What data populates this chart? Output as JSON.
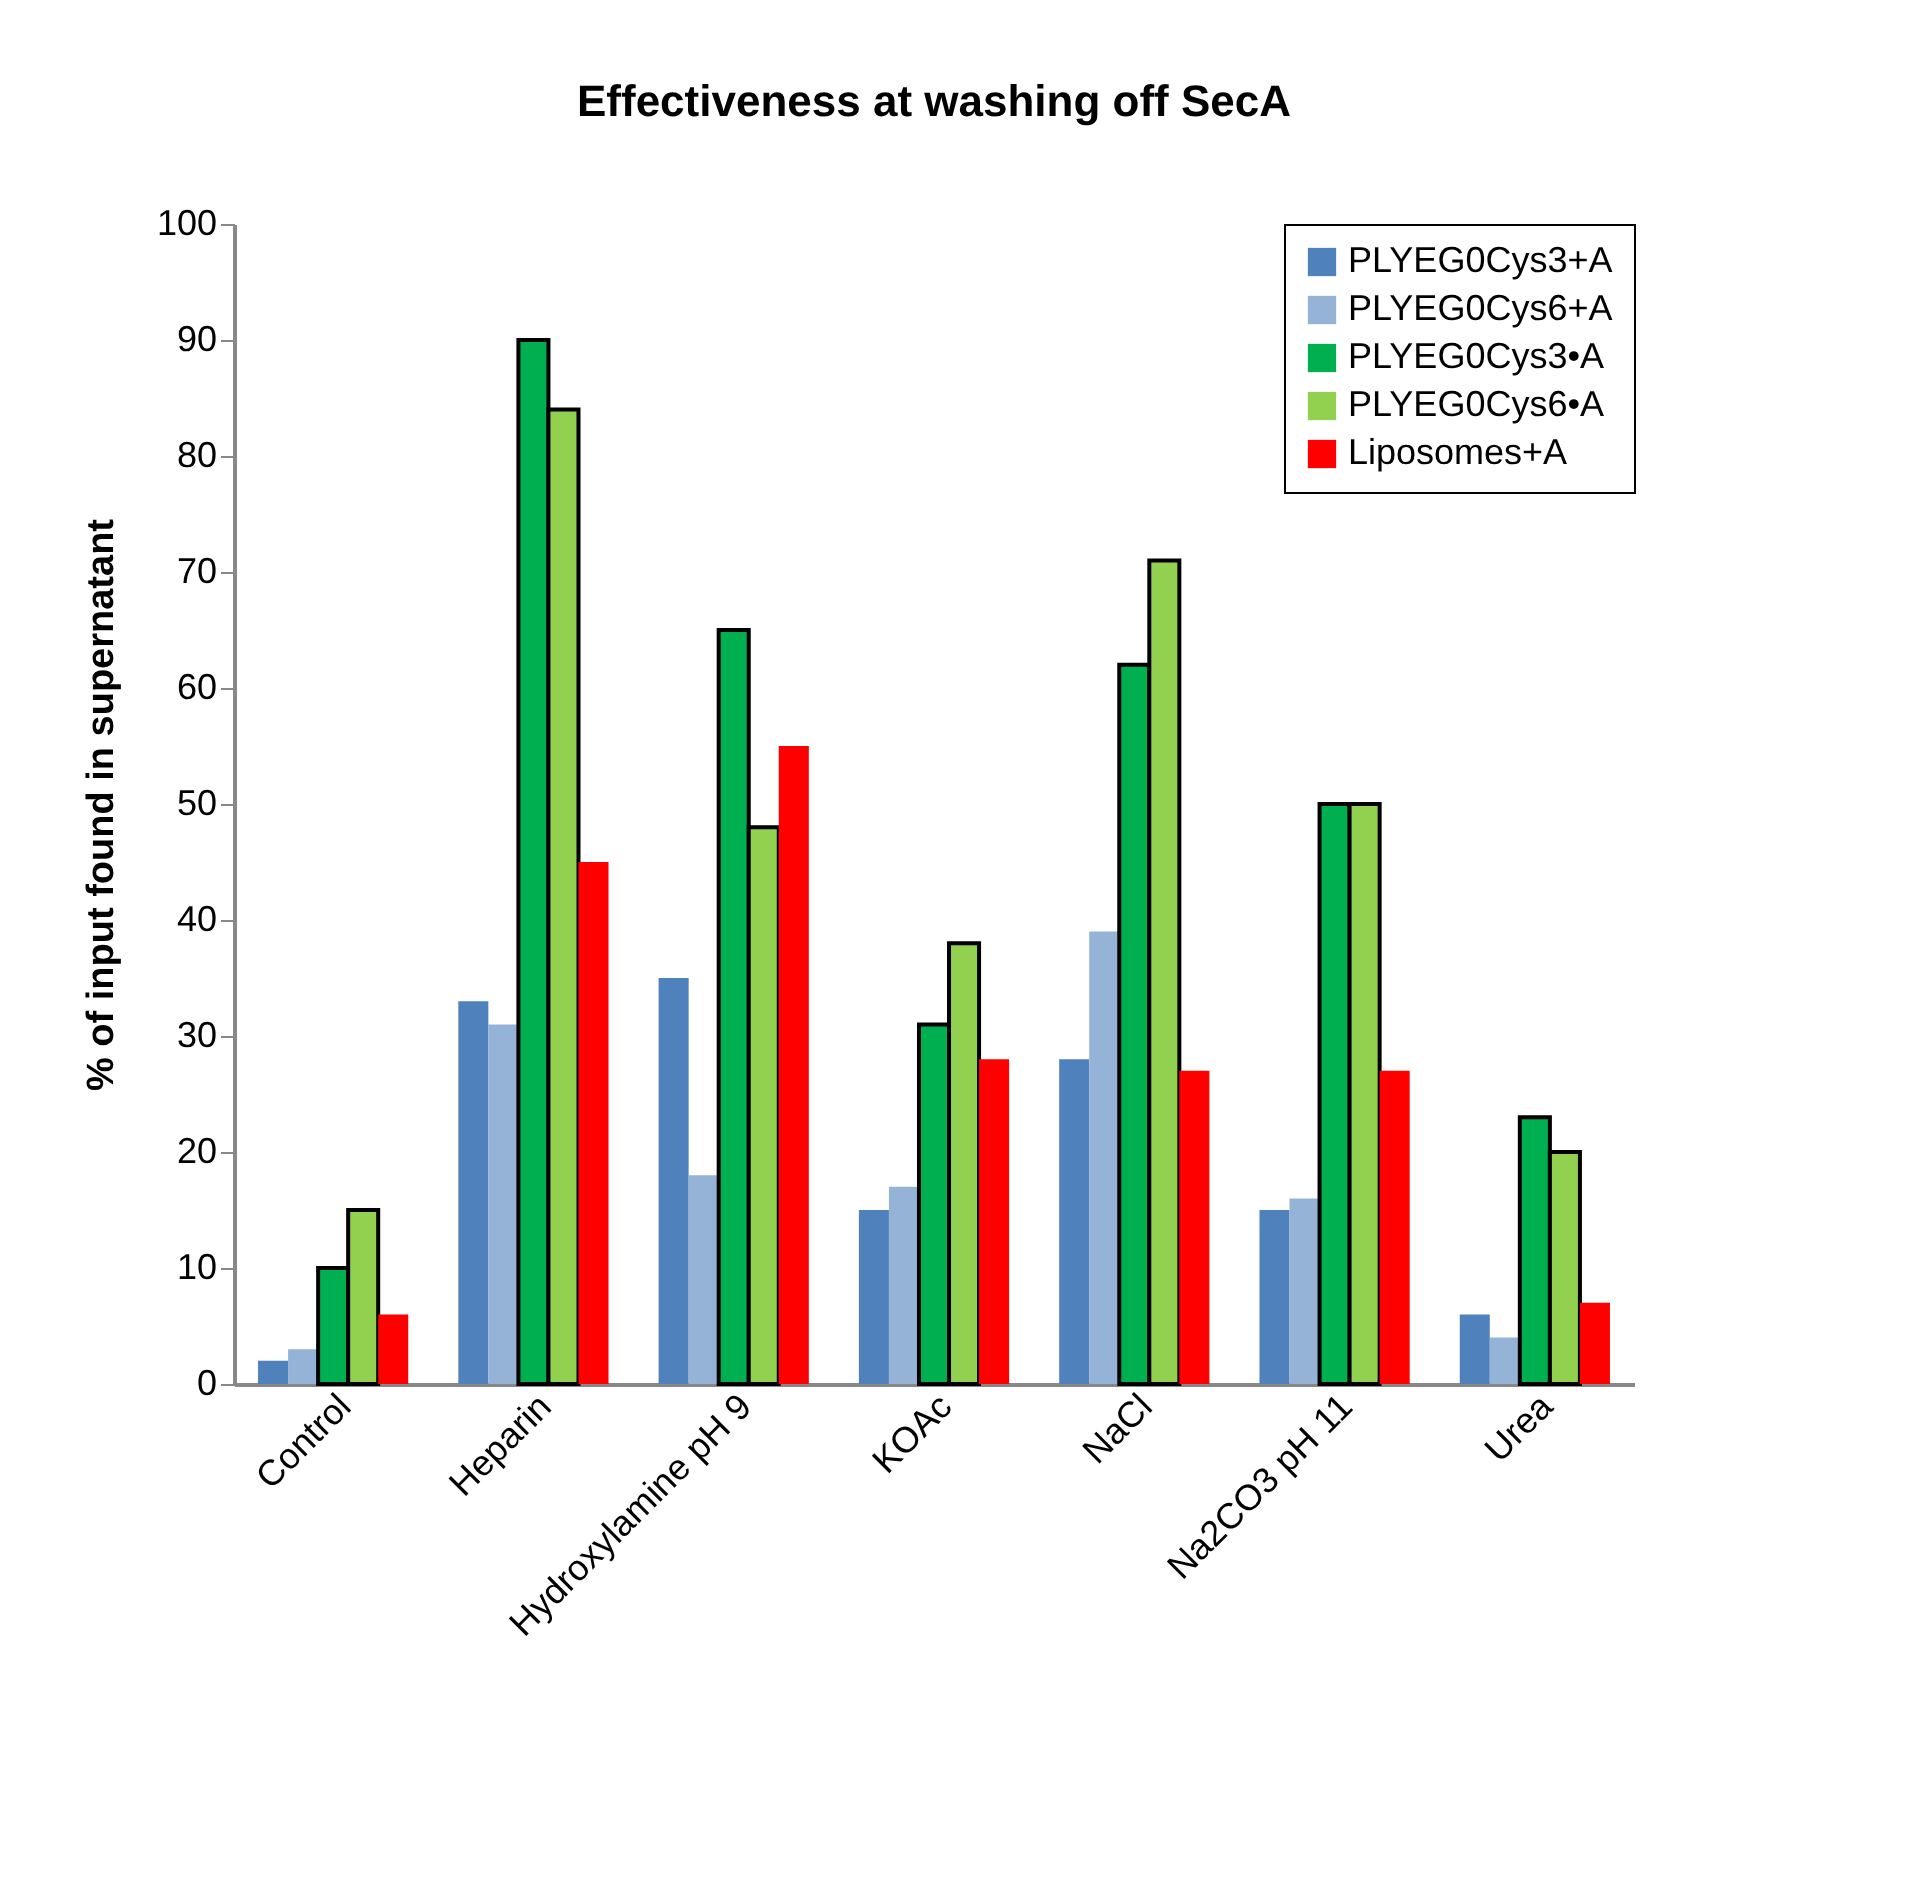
{
  "chart_data": {
    "type": "bar",
    "title": "Effectiveness at washing off SecA",
    "ylabel": "% of input found in supernatant",
    "categories": [
      "Control",
      "Heparin",
      "Hydroxylamine pH 9",
      "KOAc",
      "NaCl",
      "Na2CO3 pH 11",
      "Urea"
    ],
    "series": [
      {
        "name": "PLYEG0Cys3+A",
        "color": "#4f81bd",
        "values": [
          2,
          33,
          35,
          15,
          28,
          15,
          6
        ]
      },
      {
        "name": "PLYEG0Cys6+A",
        "color": "#95b3d7",
        "values": [
          3,
          31,
          18,
          17,
          39,
          16,
          4
        ]
      },
      {
        "name": "PLYEG0Cys3•A",
        "color": "#00b050",
        "values": [
          10,
          90,
          65,
          31,
          62,
          50,
          23
        ]
      },
      {
        "name": "PLYEG0Cys6•A",
        "color": "#92d050",
        "values": [
          15,
          84,
          48,
          38,
          71,
          50,
          20
        ]
      },
      {
        "name": "Liposomes+A",
        "color": "#ff0000",
        "values": [
          6,
          45,
          55,
          28,
          27,
          27,
          7
        ]
      }
    ],
    "ylim": [
      0,
      100
    ],
    "yticks": [
      0,
      10,
      20,
      30,
      40,
      50,
      60,
      70,
      80,
      90,
      100
    ],
    "grid": false,
    "legend": "top right"
  }
}
